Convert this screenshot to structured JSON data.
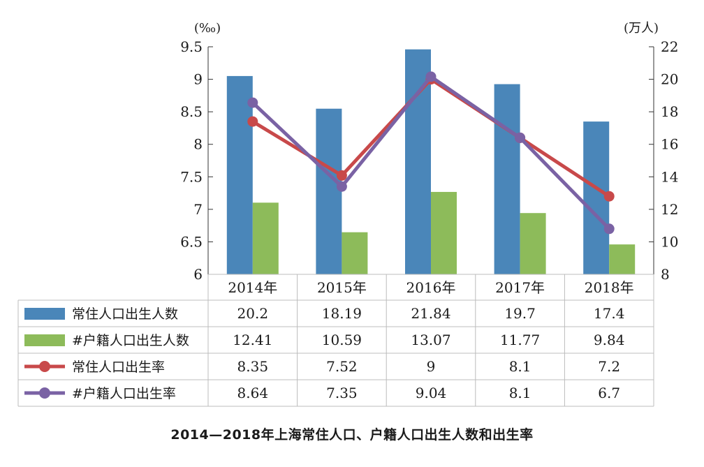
{
  "title": "2014—2018年上海常住人口、户籍人口出生人数和出生率",
  "colors": {
    "resident_births": "#4a86b9",
    "registered_births": "#8dbb5a",
    "resident_rate": "#c8494a",
    "registered_rate": "#7a62a4",
    "grid": "#bcbcbc",
    "axis": "#333333"
  },
  "chart_data": {
    "type": "bar",
    "title": "2014—2018年上海常住人口、户籍人口出生人数和出生率",
    "categories": [
      "2014年",
      "2015年",
      "2016年",
      "2017年",
      "2018年"
    ],
    "y_left": {
      "unit": "(‰)",
      "ylim": [
        6,
        9.5
      ],
      "ticks": [
        "6",
        "6.5",
        "7",
        "7.5",
        "8",
        "8.5",
        "9",
        "9.5"
      ]
    },
    "y_right": {
      "unit": "(万人)",
      "ylim": [
        8,
        22
      ],
      "ticks": [
        "8",
        "10",
        "12",
        "14",
        "16",
        "18",
        "20",
        "22"
      ]
    },
    "series": [
      {
        "name": "常住人口出生人数",
        "kind": "bar",
        "axis": "right",
        "values": [
          20.2,
          18.19,
          21.84,
          19.7,
          17.4
        ],
        "labels": [
          "20.2",
          "18.19",
          "21.84",
          "19.7",
          "17.4"
        ]
      },
      {
        "name": "#户籍人口出生人数",
        "kind": "bar",
        "axis": "right",
        "values": [
          12.41,
          10.59,
          13.07,
          11.77,
          9.84
        ],
        "labels": [
          "12.41",
          "10.59",
          "13.07",
          "11.77",
          "9.84"
        ]
      },
      {
        "name": "常住人口出生率",
        "kind": "line",
        "axis": "left",
        "values": [
          8.35,
          7.52,
          9,
          8.1,
          7.2
        ],
        "labels": [
          "8.35",
          "7.52",
          "9",
          "8.1",
          "7.2"
        ]
      },
      {
        "name": "#户籍人口出生率",
        "kind": "line",
        "axis": "left",
        "values": [
          8.64,
          7.35,
          9.04,
          8.1,
          6.7
        ],
        "labels": [
          "8.64",
          "7.35",
          "9.04",
          "8.1",
          "6.7"
        ]
      }
    ],
    "grid": false,
    "legend": "data-table-below"
  }
}
